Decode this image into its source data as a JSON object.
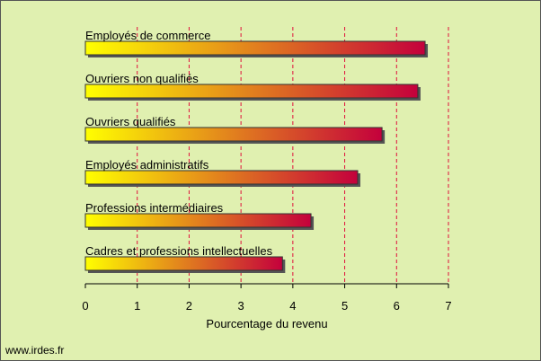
{
  "chart_data": {
    "type": "barh",
    "categories": [
      "Employés de commerce",
      "Ouvriers non qualifiés",
      "Ouvriers qualifiés",
      "Employés administratifs",
      "Professions intermédiaires",
      "Cadres et professions intellectuelles"
    ],
    "values": [
      6.55,
      6.41,
      5.72,
      5.25,
      4.35,
      3.8
    ],
    "gradient": [
      "#ffff00",
      "#c4003c"
    ],
    "xlabel": "Pourcentage du revenu",
    "xlim": [
      0,
      7
    ],
    "xticks": [
      0,
      1,
      2,
      3,
      4,
      5,
      6,
      7
    ],
    "grid": true,
    "grid_color": "#e0103c",
    "source": "www.irdes.fr"
  }
}
